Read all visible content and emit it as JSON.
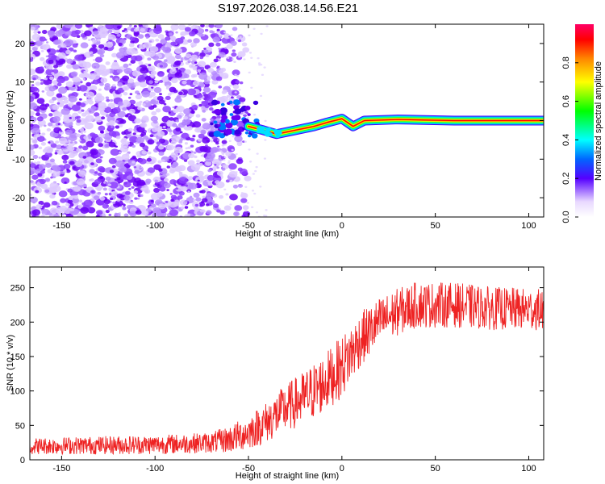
{
  "title": "S197.2026.038.14.56.E21",
  "chart_data": [
    {
      "type": "heatmap",
      "name": "spectrogram",
      "xlabel": "Height of straight line (km)",
      "ylabel": "Frequency (Hz)",
      "xlim": [
        -167,
        108
      ],
      "ylim": [
        -25,
        25
      ],
      "x_ticks": [
        -150,
        -100,
        -50,
        0,
        50,
        100
      ],
      "y_ticks": [
        -20,
        -10,
        0,
        10,
        20
      ],
      "signal_track": [
        {
          "x": -50,
          "y": -1.5
        },
        {
          "x": -42,
          "y": -2.5
        },
        {
          "x": -35,
          "y": -3.5
        },
        {
          "x": -25,
          "y": -2.5
        },
        {
          "x": -15,
          "y": -1.5
        },
        {
          "x": -8,
          "y": -0.5
        },
        {
          "x": 0,
          "y": 0.5
        },
        {
          "x": 6,
          "y": -1.5
        },
        {
          "x": 12,
          "y": 0
        },
        {
          "x": 30,
          "y": 0.3
        },
        {
          "x": 60,
          "y": 0
        },
        {
          "x": 108,
          "y": 0
        }
      ],
      "noise_region": [
        -167,
        -65
      ],
      "colorbar": {
        "label": "Normalized spectral amplitude",
        "range": [
          0.0,
          1.0
        ],
        "ticks": [
          0.0,
          0.2,
          0.4,
          0.6,
          0.8
        ],
        "tick_labels": [
          "0.0",
          "0.2",
          "0.4",
          "0.6",
          "0.8"
        ]
      }
    },
    {
      "type": "line",
      "name": "snr",
      "xlabel": "Height of straight line (km)",
      "ylabel": "SNR (10 * v/v)",
      "xlim": [
        -167,
        108
      ],
      "ylim": [
        0,
        280
      ],
      "x_ticks": [
        -150,
        -100,
        -50,
        0,
        50,
        100
      ],
      "y_ticks": [
        0,
        50,
        100,
        150,
        200,
        250
      ],
      "color": "#ee2222",
      "trend": {
        "x": [
          -167,
          -100,
          -70,
          -60,
          -50,
          -40,
          -30,
          -20,
          -10,
          0,
          10,
          20,
          30,
          40,
          60,
          80,
          108
        ],
        "y": [
          20,
          22,
          25,
          30,
          40,
          55,
          75,
          90,
          110,
          135,
          175,
          200,
          215,
          225,
          225,
          220,
          218
        ]
      },
      "noise_amplitude": {
        "x": [
          -167,
          -70,
          -50,
          -20,
          0,
          20,
          108
        ],
        "y": [
          12,
          15,
          25,
          40,
          45,
          35,
          30
        ]
      }
    }
  ]
}
